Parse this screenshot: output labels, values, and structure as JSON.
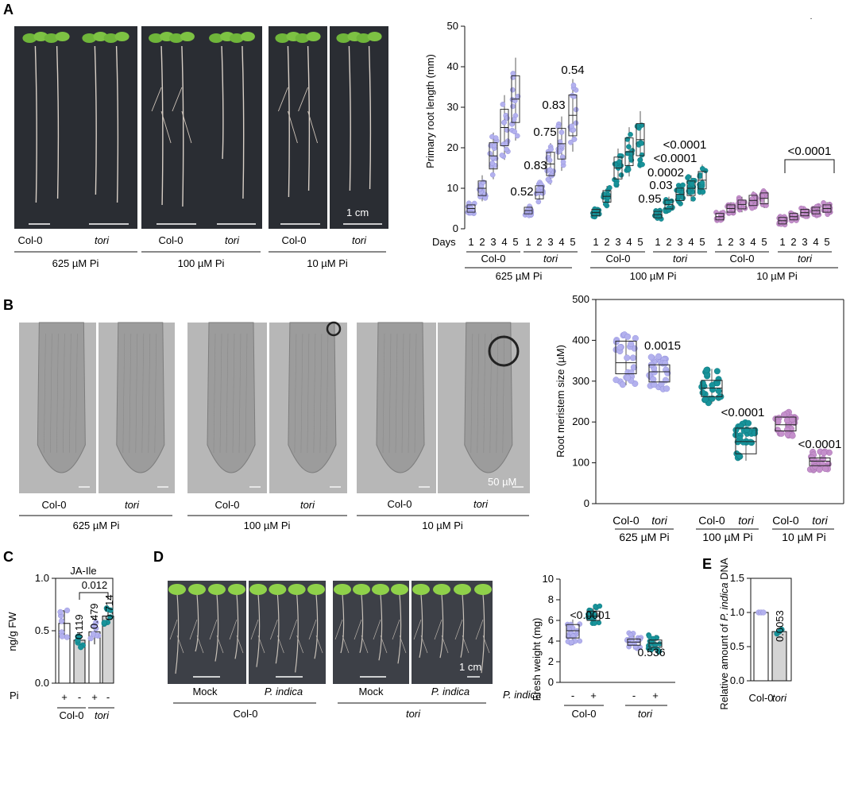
{
  "colors": {
    "lav": "#b3b1ee",
    "lavDark": "#8a88d6",
    "teal": "#17939a",
    "tealDark": "#0c6f75",
    "mauve": "#c48fcb",
    "mauveDark": "#9b62a3",
    "photo": "#2a2d33",
    "photoGrey": "#a9a9a9",
    "bar": "#d4d4d4"
  },
  "panelA": {
    "letter": "A",
    "scale_bar": "1 cm",
    "genotypes": [
      "Col-0",
      "tori"
    ],
    "conditions": [
      "625 µM Pi",
      "100 µM Pi",
      "10 µM Pi"
    ],
    "chart": {
      "type": "box",
      "ylabel": "Primary root length (mm)",
      "ylim": [
        0,
        50
      ],
      "yticks": [
        "0",
        "10",
        "20",
        "30",
        "40",
        "50"
      ],
      "days_label": "Days",
      "day_ticks": [
        "1",
        "2",
        "3",
        "4",
        "5"
      ],
      "groups": [
        {
          "condition": "625 µM Pi",
          "genotype": "Col-0",
          "color": "lav",
          "medians": [
            5,
            10,
            18,
            25,
            32
          ]
        },
        {
          "condition": "625 µM Pi",
          "genotype": "tori",
          "color": "lav",
          "medians": [
            4.5,
            9,
            16,
            21,
            28
          ]
        },
        {
          "condition": "100 µM Pi",
          "genotype": "Col-0",
          "color": "teal",
          "medians": [
            4,
            8,
            15,
            19,
            22
          ]
        },
        {
          "condition": "100 µM Pi",
          "genotype": "tori",
          "color": "teal",
          "medians": [
            3.5,
            6,
            8.5,
            10,
            12
          ]
        },
        {
          "condition": "10 µM Pi",
          "genotype": "Col-0",
          "color": "mauve",
          "medians": [
            3,
            5,
            6,
            7,
            7.5
          ]
        },
        {
          "condition": "10 µM Pi",
          "genotype": "tori",
          "color": "mauve",
          "medians": [
            2,
            3,
            4,
            4.5,
            5
          ]
        }
      ],
      "annotations": [
        "0.54",
        "0.83",
        "0.75",
        "0.83",
        "0.52",
        "<0.0001",
        "<0.0001",
        "0.0002",
        "0.03",
        "0.95",
        "<0.0001"
      ]
    }
  },
  "panelB": {
    "letter": "B",
    "scale_bar": "50 µM",
    "genotypes": [
      "Col-0",
      "tori"
    ],
    "conditions": [
      "625 µM Pi",
      "100 µM Pi",
      "10 µM Pi"
    ],
    "chart": {
      "type": "box",
      "ylabel": "Root meristem size (µM)",
      "ylim": [
        0,
        500
      ],
      "yticks": [
        "0",
        "100",
        "200",
        "300",
        "400",
        "500"
      ],
      "boxes": [
        {
          "condition": "625 µM Pi",
          "genotype": "Col-0",
          "color": "lav",
          "median": 345,
          "q1": 318,
          "q3": 398,
          "min": 290,
          "max": 415
        },
        {
          "condition": "625 µM Pi",
          "genotype": "tori",
          "color": "lav",
          "median": 323,
          "q1": 298,
          "q3": 340,
          "min": 280,
          "max": 362
        },
        {
          "condition": "100 µM Pi",
          "genotype": "Col-0",
          "color": "teal",
          "median": 283,
          "q1": 262,
          "q3": 302,
          "min": 245,
          "max": 330
        },
        {
          "condition": "100 µM Pi",
          "genotype": "tori",
          "color": "teal",
          "median": 152,
          "q1": 122,
          "q3": 185,
          "min": 105,
          "max": 200
        },
        {
          "condition": "10 µM Pi",
          "genotype": "Col-0",
          "color": "mauve",
          "median": 193,
          "q1": 178,
          "q3": 212,
          "min": 165,
          "max": 225
        },
        {
          "condition": "10 µM Pi",
          "genotype": "tori",
          "color": "mauve",
          "median": 104,
          "q1": 93,
          "q3": 112,
          "min": 82,
          "max": 128
        }
      ],
      "pvalues": [
        "0.0015",
        "<0.0001",
        "<0.0001"
      ]
    }
  },
  "panelC": {
    "letter": "C",
    "title": "JA-Ile",
    "ylabel": "ng/g FW",
    "yticks": [
      "0.0",
      "0.5",
      "1.0"
    ],
    "ylim": [
      0,
      1.0
    ],
    "pi_label": "Pi",
    "pi_signs": [
      "+",
      "-",
      "+",
      "-"
    ],
    "genotypes": [
      "Col-0",
      "tori"
    ],
    "chart": {
      "type": "bar",
      "values": [
        0.57,
        0.41,
        0.49,
        0.64
      ],
      "errors": [
        0.12,
        0.07,
        0.12,
        0.07
      ],
      "fills": [
        "#ffffff",
        "#d4d4d4",
        "#ffffff",
        "#d4d4d4"
      ],
      "dot_colors": [
        "lav",
        "teal",
        "lav",
        "teal"
      ]
    },
    "pvalues": [
      "0.119",
      "0.479",
      "0.714"
    ],
    "bracket_p": "0.012"
  },
  "panelD": {
    "letter": "D",
    "scale_bar": "1 cm",
    "treatments": [
      "Mock",
      "P. indica",
      "Mock",
      "P. indica"
    ],
    "genotypes": [
      "Col-0",
      "tori"
    ],
    "chart": {
      "type": "box",
      "ylabel": "Fresh weight (mg)",
      "ylim": [
        0,
        10
      ],
      "yticks": [
        "0",
        "2",
        "4",
        "6",
        "8",
        "10"
      ],
      "boxes": [
        {
          "genotype": "Col-0",
          "treatment": "-",
          "color": "lav",
          "median": 5.0,
          "q1": 4.3,
          "q3": 5.6,
          "min": 3.6,
          "max": 6.1
        },
        {
          "genotype": "Col-0",
          "treatment": "+",
          "color": "teal",
          "median": 6.4,
          "q1": 6.0,
          "q3": 6.9,
          "min": 5.5,
          "max": 7.4
        },
        {
          "genotype": "tori",
          "treatment": "-",
          "color": "lav",
          "median": 3.9,
          "q1": 3.6,
          "q3": 4.2,
          "min": 3.2,
          "max": 4.8
        },
        {
          "genotype": "tori",
          "treatment": "+",
          "color": "teal",
          "median": 3.8,
          "q1": 3.4,
          "q3": 4.1,
          "min": 2.9,
          "max": 4.6
        }
      ],
      "treatment_label": "P. indica",
      "signs": [
        "-",
        "+",
        "-",
        "+"
      ],
      "pvalues": [
        "<0.0001",
        "0.536"
      ]
    }
  },
  "panelE": {
    "letter": "E",
    "ylabel_pre": "Relative amount of ",
    "ylabel_em": "P. indica",
    "ylabel_post": " DNA",
    "yticks": [
      "0.0",
      "0.5",
      "1.0",
      "1.5"
    ],
    "ylim": [
      0,
      1.5
    ],
    "genotypes": [
      "Col-0",
      "tori"
    ],
    "chart": {
      "type": "bar",
      "values": [
        1.0,
        0.72
      ],
      "fills": [
        "#ffffff",
        "#d4d4d4"
      ],
      "dot_colors": [
        "lav",
        "teal"
      ]
    },
    "pvalue": "0.0053"
  }
}
